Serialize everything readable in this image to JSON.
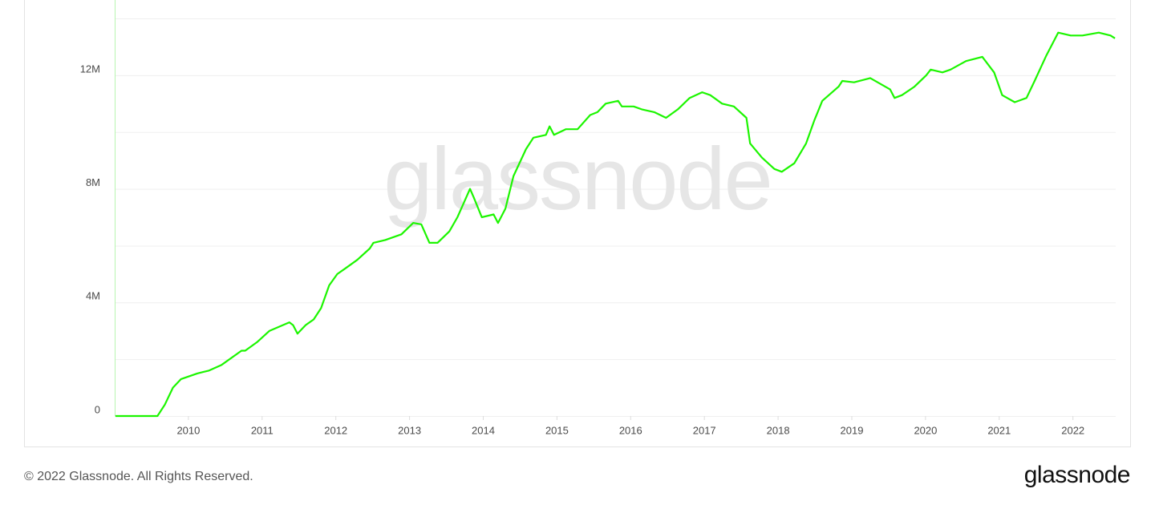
{
  "chart_data": {
    "type": "line",
    "watermark": "glassnode",
    "color": "#1cf500",
    "x": [
      2009.01,
      2009.58,
      2009.68,
      2009.79,
      2009.9,
      2010.12,
      2010.28,
      2010.45,
      2010.72,
      2010.77,
      2010.93,
      2011.1,
      2011.37,
      2011.42,
      2011.48,
      2011.59,
      2011.7,
      2011.8,
      2011.91,
      2012.02,
      2012.13,
      2012.29,
      2012.46,
      2012.51,
      2012.67,
      2012.89,
      2013.05,
      2013.16,
      2013.27,
      2013.38,
      2013.54,
      2013.65,
      2013.82,
      2013.87,
      2013.98,
      2014.14,
      2014.2,
      2014.3,
      2014.41,
      2014.58,
      2014.68,
      2014.85,
      2014.9,
      2014.96,
      2015.12,
      2015.28,
      2015.45,
      2015.55,
      2015.66,
      2015.83,
      2015.88,
      2016.04,
      2016.15,
      2016.32,
      2016.48,
      2016.64,
      2016.8,
      2016.97,
      2017.08,
      2017.24,
      2017.4,
      2017.57,
      2017.62,
      2017.78,
      2017.95,
      2018.05,
      2018.22,
      2018.38,
      2018.49,
      2018.6,
      2018.82,
      2018.87,
      2019.03,
      2019.25,
      2019.52,
      2019.58,
      2019.68,
      2019.85,
      2020.01,
      2020.07,
      2020.23,
      2020.34,
      2020.55,
      2020.77,
      2020.93,
      2021.04,
      2021.21,
      2021.37,
      2021.48,
      2021.64,
      2021.8,
      2021.97,
      2022.13,
      2022.35,
      2022.51,
      2022.57
    ],
    "values": [
      0,
      0,
      400000,
      1000000,
      1300000,
      1500000,
      1600000,
      1800000,
      2300000,
      2300000,
      2600000,
      3000000,
      3300000,
      3200000,
      2900000,
      3200000,
      3400000,
      3800000,
      4600000,
      5000000,
      5200000,
      5500000,
      5900000,
      6100000,
      6200000,
      6400000,
      6800000,
      6750000,
      6100000,
      6100000,
      6500000,
      7000000,
      8000000,
      7700000,
      7000000,
      7100000,
      6800000,
      7300000,
      8450000,
      9400000,
      9800000,
      9900000,
      10200000,
      9900000,
      10100000,
      10100000,
      10600000,
      10700000,
      11000000,
      11100000,
      10900000,
      10900000,
      10800000,
      10700000,
      10500000,
      10800000,
      11200000,
      11400000,
      11300000,
      11000000,
      10900000,
      10500000,
      9600000,
      9100000,
      8700000,
      8600000,
      8900000,
      9600000,
      10400000,
      11100000,
      11600000,
      11800000,
      11750000,
      11900000,
      11500000,
      11200000,
      11300000,
      11600000,
      12000000,
      12200000,
      12100000,
      12200000,
      12500000,
      12650000,
      12100000,
      11300000,
      11050000,
      11200000,
      11800000,
      12700000,
      13500000,
      13400000,
      13400000,
      13500000,
      13400000,
      13300000
    ],
    "xlim": [
      2009.0,
      2022.58
    ],
    "xticks": [
      2010,
      2011,
      2012,
      2013,
      2014,
      2015,
      2016,
      2017,
      2018,
      2019,
      2020,
      2021,
      2022
    ],
    "ylim": [
      0,
      14650000
    ],
    "yticks": [
      {
        "value": 0,
        "label": "0"
      },
      {
        "value": 4000000,
        "label": "4M"
      },
      {
        "value": 8000000,
        "label": "8M"
      },
      {
        "value": 12000000,
        "label": "12M"
      }
    ],
    "minor_yticks": [
      2000000,
      6000000,
      10000000,
      14000000
    ],
    "grid": true
  },
  "footer": {
    "copyright": "© 2022 Glassnode. All Rights Reserved.",
    "brand": "glassnode"
  }
}
